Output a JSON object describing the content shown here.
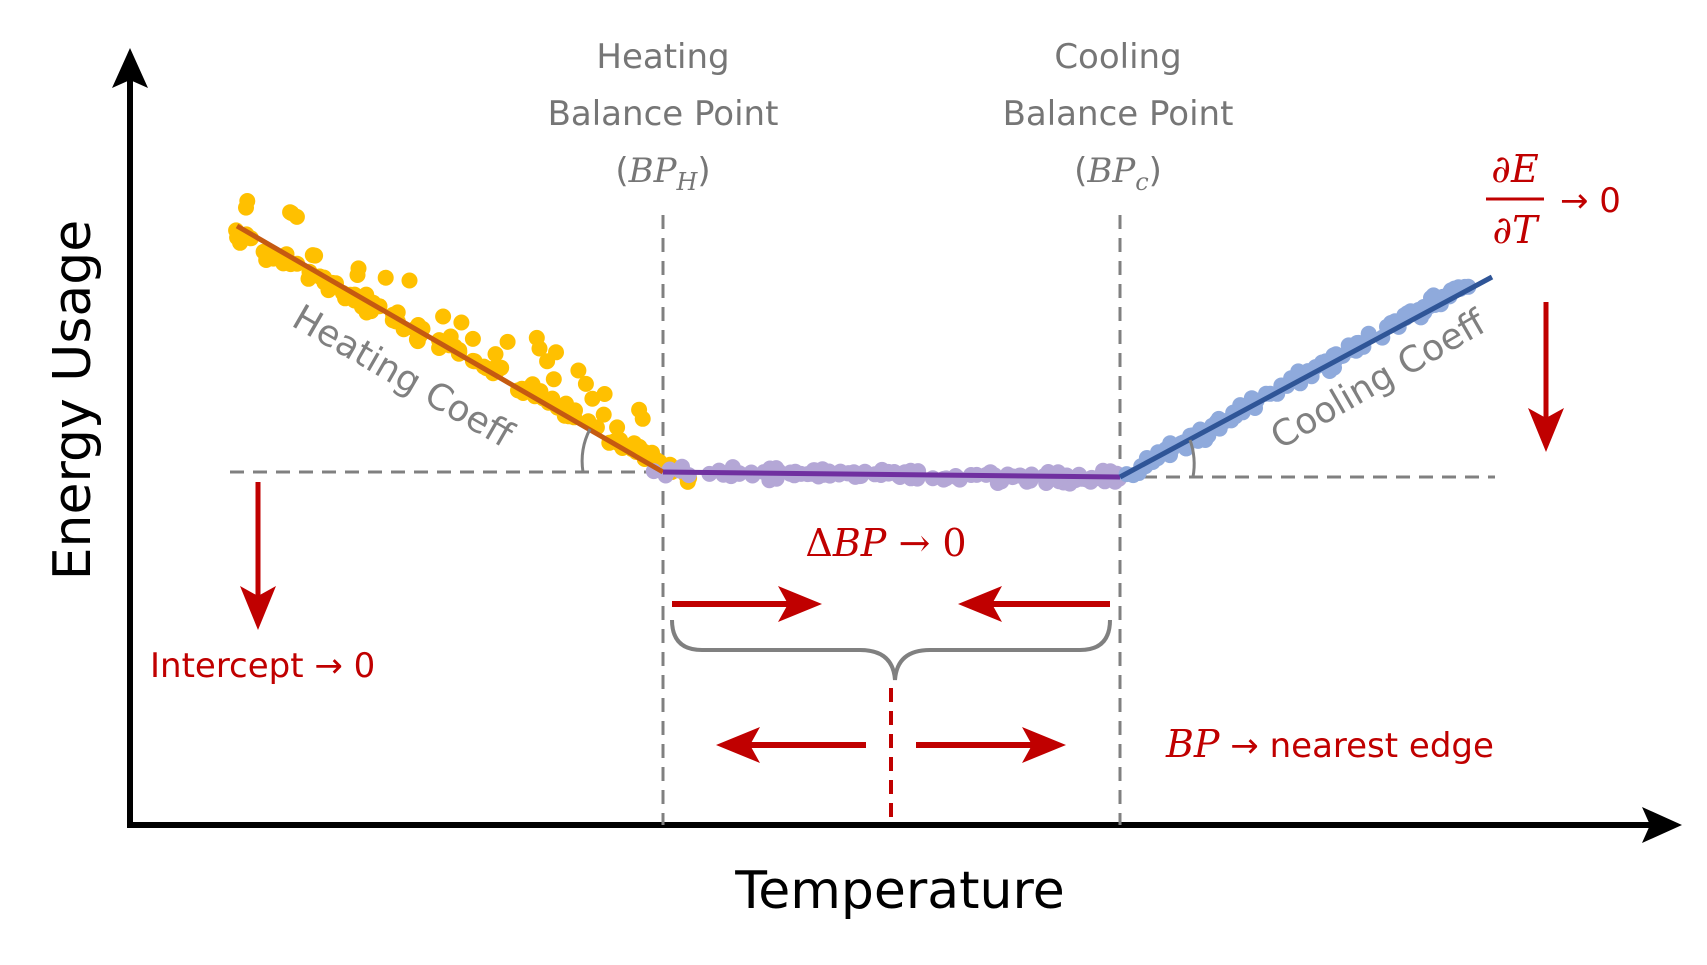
{
  "axes": {
    "x_title": "Temperature",
    "y_title": "Energy Usage"
  },
  "labels": {
    "heating_bp_line1": "Heating",
    "heating_bp_line2": "Balance Point",
    "heating_bp_sym_open": "(",
    "heating_bp_sym_main": "BP",
    "heating_bp_sym_sub": "H",
    "heating_bp_sym_close": ")",
    "cooling_bp_line1": "Cooling",
    "cooling_bp_line2": "Balance Point",
    "cooling_bp_sym_open": "(",
    "cooling_bp_sym_main": "BP",
    "cooling_bp_sym_sub": "c",
    "cooling_bp_sym_close": ")",
    "heating_coeff": "Heating Coeff",
    "cooling_coeff": "Cooling Coeff",
    "intercept": "Intercept → 0",
    "delta_bp_delta": "Δ",
    "delta_bp_main": "BP",
    "delta_bp_rest": " → 0",
    "derivative_num": "∂E",
    "derivative_den": "∂T",
    "derivative_rest": "→ 0",
    "bp_edge_main": "BP",
    "bp_edge_rest": " → nearest edge"
  },
  "colors": {
    "heating_points": "#ffc000",
    "heating_line": "#c55a11",
    "baseline_points": "#b4a7d6",
    "baseline_line": "#7030a0",
    "cooling_points": "#8faadc",
    "cooling_line": "#2f5597",
    "annotation_red": "#c00000",
    "guide_gray": "#808080"
  }
}
